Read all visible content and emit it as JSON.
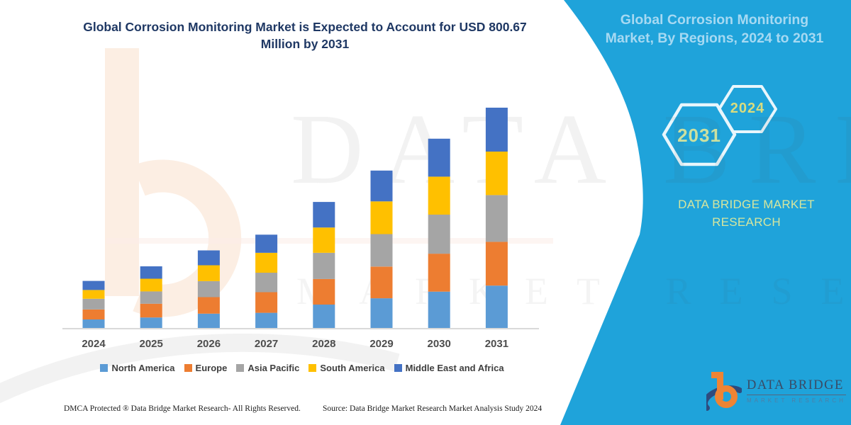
{
  "colors": {
    "panel_cyan": "#1FA3DA",
    "title_navy": "#1F3864",
    "axis_label": "#4D4D4D",
    "legend_text": "#3F3F3F",
    "baseline": "#D9D9D9",
    "panel_title": "#A6D9F2",
    "hex_outline": "#E8F6FC",
    "hex_2031_text": "#CCE0A0",
    "hex_2024_text": "#D9DC7E",
    "brand_text": "#D6E69E",
    "logo_orange": "#EE8434",
    "logo_navy": "#2E4B7E",
    "watermark_peach": "#F5C9A8"
  },
  "chart": {
    "title_line1": "Global Corrosion Monitoring Market is Expected to Account for USD 800.67",
    "title_line2": "Million by 2031"
  },
  "chart_data": {
    "type": "bar",
    "stacked": true,
    "title": "Global Corrosion Monitoring Market is Expected to Account for USD 800.67 Million by 2031",
    "unit": "USD Million",
    "categories": [
      "2024",
      "2025",
      "2026",
      "2027",
      "2028",
      "2029",
      "2030",
      "2031"
    ],
    "series": [
      {
        "name": "North America",
        "color": "#5B9BD5",
        "values": [
          31,
          38,
          52,
          55,
          85,
          108,
          132,
          154
        ]
      },
      {
        "name": "Europe",
        "color": "#ED7D31",
        "values": [
          36,
          50,
          60,
          75,
          93,
          115,
          138,
          159
        ]
      },
      {
        "name": "Asia Pacific",
        "color": "#A5A5A5",
        "values": [
          39,
          45,
          58,
          71,
          95,
          118,
          142,
          170
        ]
      },
      {
        "name": "South America",
        "color": "#FFC000",
        "values": [
          32,
          46,
          58,
          72,
          92,
          119,
          138,
          158
        ]
      },
      {
        "name": "Middle East and Africa",
        "color": "#4472C4",
        "values": [
          33,
          45,
          54,
          66,
          93,
          112,
          138,
          159.67
        ]
      }
    ],
    "totals": [
      171,
      224,
      282,
      339,
      458,
      572,
      688,
      800.67
    ],
    "ylim": [
      0,
      850
    ],
    "grid": false,
    "y_axis_visible": false,
    "legend_position": "bottom"
  },
  "panel": {
    "title_line1": "Global Corrosion Monitoring",
    "title_line2": "Market, By Regions, 2024 to 2031",
    "hexagons": [
      {
        "year": "2031"
      },
      {
        "year": "2024"
      }
    ],
    "brand_line1": "DATA BRIDGE MARKET",
    "brand_line2": "RESEARCH",
    "logo": {
      "name": "DATA BRIDGE",
      "subtitle": "MARKET RESEARCH"
    }
  },
  "footer": {
    "left": "DMCA Protected ® Data Bridge Market Research-  All Rights Reserved.",
    "right": "Source: Data Bridge Market Research  Market Analysis Study 2024"
  },
  "watermark": {
    "big": "DATA BRIDGE",
    "sub": "MARKET RESEARCH"
  }
}
